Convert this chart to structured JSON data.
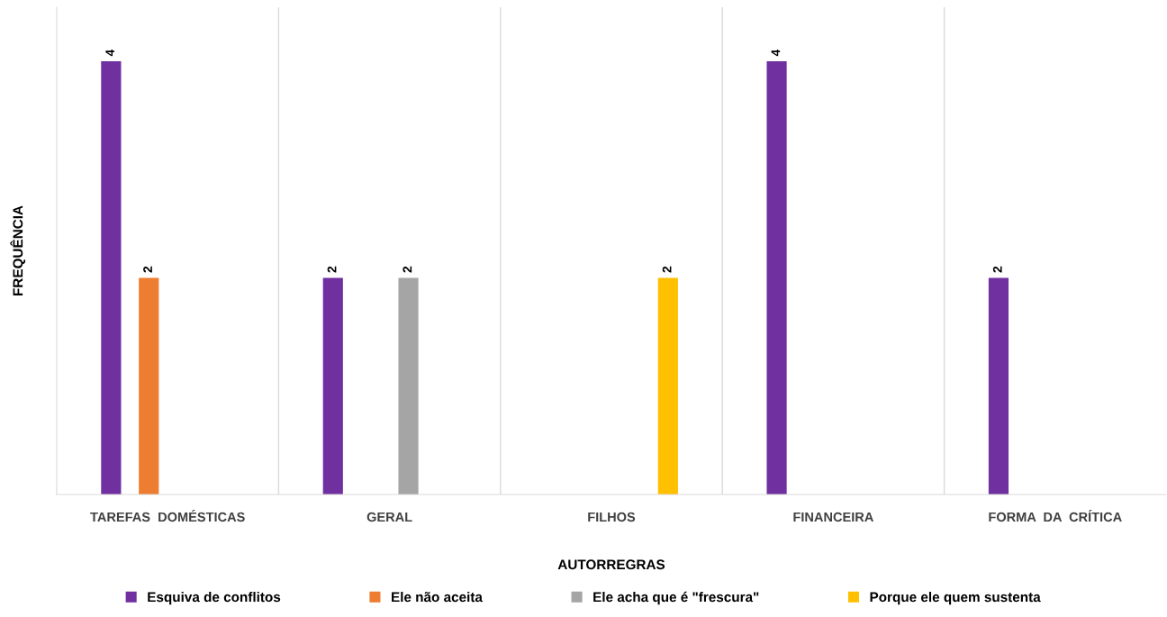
{
  "chart_data": {
    "type": "bar",
    "xlabel": "AUTORREGRAS",
    "ylabel": "FREQUÊNCIA",
    "categories": [
      "TAREFAS  DOMÉSTICAS",
      "GERAL",
      "FILHOS",
      "FINANCEIRA",
      "FORMA  DA  CRÍTICA"
    ],
    "series": [
      {
        "name": "Esquiva de conflitos",
        "color": "#7030a0",
        "values": [
          4,
          2,
          null,
          4,
          2
        ]
      },
      {
        "name": "Ele não aceita",
        "color": "#ed7d31",
        "values": [
          2,
          null,
          null,
          null,
          null
        ]
      },
      {
        "name": "Ele acha que é \"frescura\"",
        "color": "#a5a5a5",
        "values": [
          null,
          2,
          null,
          null,
          null
        ]
      },
      {
        "name": "Porque ele quem sustenta",
        "color": "#ffc000",
        "values": [
          null,
          null,
          2,
          null,
          null
        ]
      }
    ],
    "ylim": [
      0,
      4.5
    ],
    "tick_labels": "x",
    "grid": "x",
    "legend": "bottom",
    "data_labels": true
  }
}
